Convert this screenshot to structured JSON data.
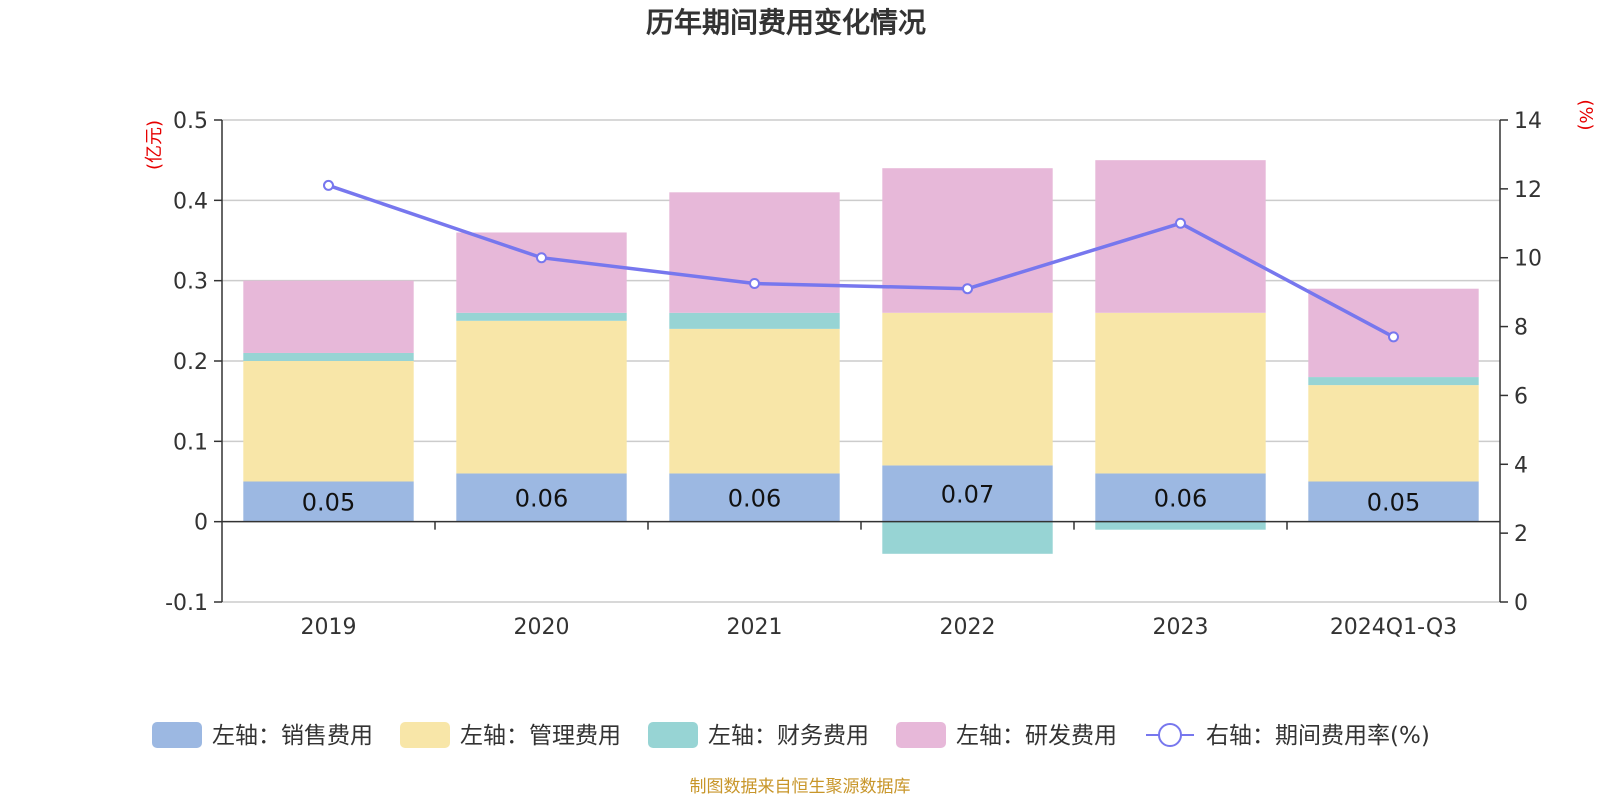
{
  "title": "历年期间费用变化情况",
  "source": "制图数据来自恒生聚源数据库",
  "colors": {
    "sales": "#9cb8e2",
    "admin": "#f8e6a8",
    "finance": "#97d4d4",
    "rd": "#e7b8d9",
    "rate": "#7777ee"
  },
  "chart_data": {
    "type": "bar",
    "stacked": true,
    "categories": [
      "2019",
      "2020",
      "2021",
      "2022",
      "2023",
      "2024Q1-Q3"
    ],
    "left_axis": {
      "unit": "(亿元)",
      "ylim": [
        -0.1,
        0.5
      ],
      "ticks": [
        -0.1,
        0,
        0.1,
        0.2,
        0.3,
        0.4,
        0.5
      ],
      "tick_labels": [
        "-0.1",
        "0",
        "0.1",
        "0.2",
        "0.3",
        "0.4",
        "0.5"
      ]
    },
    "right_axis": {
      "unit": "(%)",
      "ylim": [
        0,
        14
      ],
      "ticks": [
        0,
        2,
        4,
        6,
        8,
        10,
        12,
        14
      ],
      "tick_labels": [
        "0",
        "2",
        "4",
        "6",
        "8",
        "10",
        "12",
        "14"
      ]
    },
    "series": [
      {
        "key": "sales",
        "name": "左轴：销售费用",
        "values": [
          0.05,
          0.06,
          0.06,
          0.07,
          0.06,
          0.05
        ],
        "labels": [
          "0.05",
          "0.06",
          "0.06",
          "0.07",
          "0.06",
          "0.05"
        ]
      },
      {
        "key": "admin",
        "name": "左轴：管理费用",
        "values": [
          0.15,
          0.19,
          0.18,
          0.19,
          0.2,
          0.12
        ]
      },
      {
        "key": "finance",
        "name": "左轴：财务费用",
        "values": [
          0.01,
          0.01,
          0.02,
          -0.04,
          -0.01,
          0.01
        ]
      },
      {
        "key": "rd",
        "name": "左轴：研发费用",
        "values": [
          0.09,
          0.1,
          0.15,
          0.18,
          0.19,
          0.11
        ]
      }
    ],
    "line": {
      "key": "rate",
      "name": "右轴：期间费用率(%)",
      "values": [
        12.1,
        10.0,
        9.25,
        9.1,
        11.0,
        7.7
      ]
    }
  }
}
